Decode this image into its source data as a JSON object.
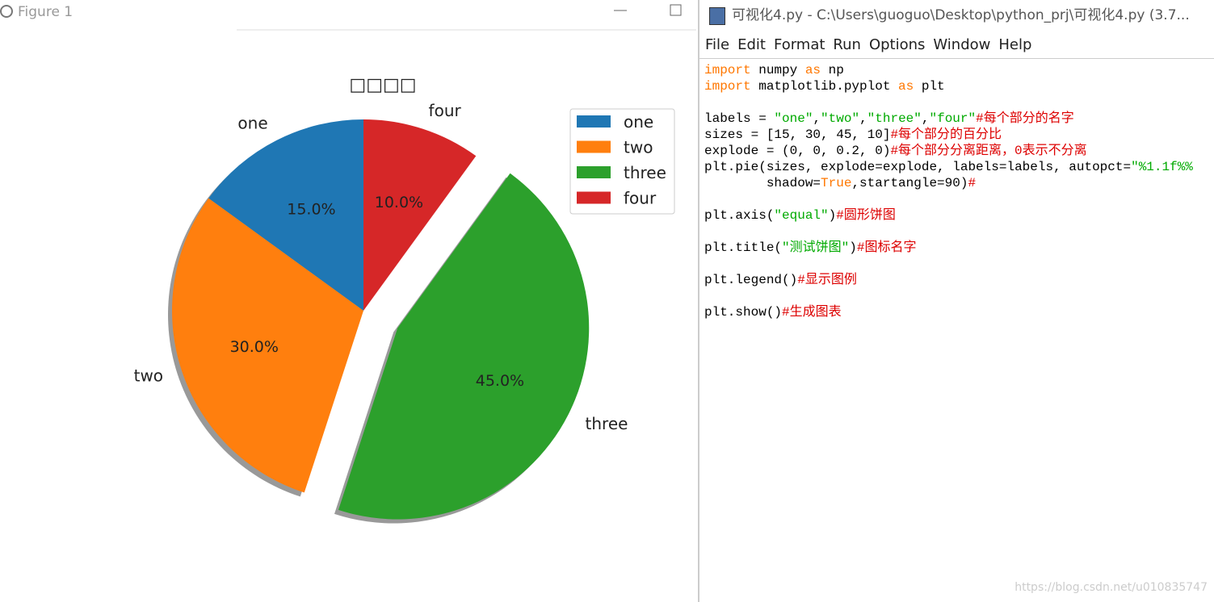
{
  "figure_window": {
    "title": "Figure 1"
  },
  "chart_data": {
    "type": "pie",
    "title": "□□□□",
    "categories": [
      "one",
      "two",
      "three",
      "four"
    ],
    "values": [
      15,
      30,
      45,
      10
    ],
    "value_labels": [
      "15.0%",
      "30.0%",
      "45.0%",
      "10.0%"
    ],
    "colors": [
      "#1f77b4",
      "#ff7f0e",
      "#2ca02c",
      "#d62728"
    ],
    "explode": [
      0,
      0,
      0.2,
      0
    ],
    "startangle": 90,
    "shadow": true,
    "legend": "upper right"
  },
  "editor": {
    "title": "可视化4.py - C:\\Users\\guoguo\\Desktop\\python_prj\\可视化4.py (3.7...",
    "menu": [
      "File",
      "Edit",
      "Format",
      "Run",
      "Options",
      "Window",
      "Help"
    ],
    "code": [
      [
        {
          "text": "import",
          "color": "#ff7700"
        },
        {
          "text": " numpy ",
          "color": "#000000"
        },
        {
          "text": "as",
          "color": "#ff7700"
        },
        {
          "text": " np",
          "color": "#000000"
        }
      ],
      [
        {
          "text": "import",
          "color": "#ff7700"
        },
        {
          "text": " matplotlib.pyplot ",
          "color": "#000000"
        },
        {
          "text": "as",
          "color": "#ff7700"
        },
        {
          "text": " plt",
          "color": "#000000"
        }
      ],
      [],
      [
        {
          "text": "labels = ",
          "color": "#000000"
        },
        {
          "text": "\"one\"",
          "color": "#00aa00"
        },
        {
          "text": ",",
          "color": "#000000"
        },
        {
          "text": "\"two\"",
          "color": "#00aa00"
        },
        {
          "text": ",",
          "color": "#000000"
        },
        {
          "text": "\"three\"",
          "color": "#00aa00"
        },
        {
          "text": ",",
          "color": "#000000"
        },
        {
          "text": "\"four\"",
          "color": "#00aa00"
        },
        {
          "text": "#每个部分的名字",
          "color": "#dd0000"
        }
      ],
      [
        {
          "text": "sizes = [15, 30, 45, 10]",
          "color": "#000000"
        },
        {
          "text": "#每个部分的百分比",
          "color": "#dd0000"
        }
      ],
      [
        {
          "text": "explode = (0, 0, 0.2, 0)",
          "color": "#000000"
        },
        {
          "text": "#每个部分分离距离，0表示不分离",
          "color": "#dd0000"
        }
      ],
      [
        {
          "text": "plt.pie(sizes, explode=explode, labels=labels, autopct=",
          "color": "#000000"
        },
        {
          "text": "\"%1.1f%%",
          "color": "#00aa00"
        }
      ],
      [
        {
          "text": "        shadow=",
          "color": "#000000"
        },
        {
          "text": "True",
          "color": "#ff7700"
        },
        {
          "text": ",startangle=90)",
          "color": "#000000"
        },
        {
          "text": "#",
          "color": "#dd0000"
        }
      ],
      [],
      [
        {
          "text": "plt.axis(",
          "color": "#000000"
        },
        {
          "text": "\"equal\"",
          "color": "#00aa00"
        },
        {
          "text": ")",
          "color": "#000000"
        },
        {
          "text": "#圆形饼图",
          "color": "#dd0000"
        }
      ],
      [],
      [
        {
          "text": "plt.title(",
          "color": "#000000"
        },
        {
          "text": "\"测试饼图\"",
          "color": "#00aa00"
        },
        {
          "text": ")",
          "color": "#000000"
        },
        {
          "text": "#图标名字",
          "color": "#dd0000"
        }
      ],
      [],
      [
        {
          "text": "plt.legend()",
          "color": "#000000"
        },
        {
          "text": "#显示图例",
          "color": "#dd0000"
        }
      ],
      [],
      [
        {
          "text": "plt.show()",
          "color": "#000000"
        },
        {
          "text": "#生成图表",
          "color": "#dd0000"
        }
      ]
    ]
  },
  "watermark": "https://blog.csdn.net/u010835747"
}
